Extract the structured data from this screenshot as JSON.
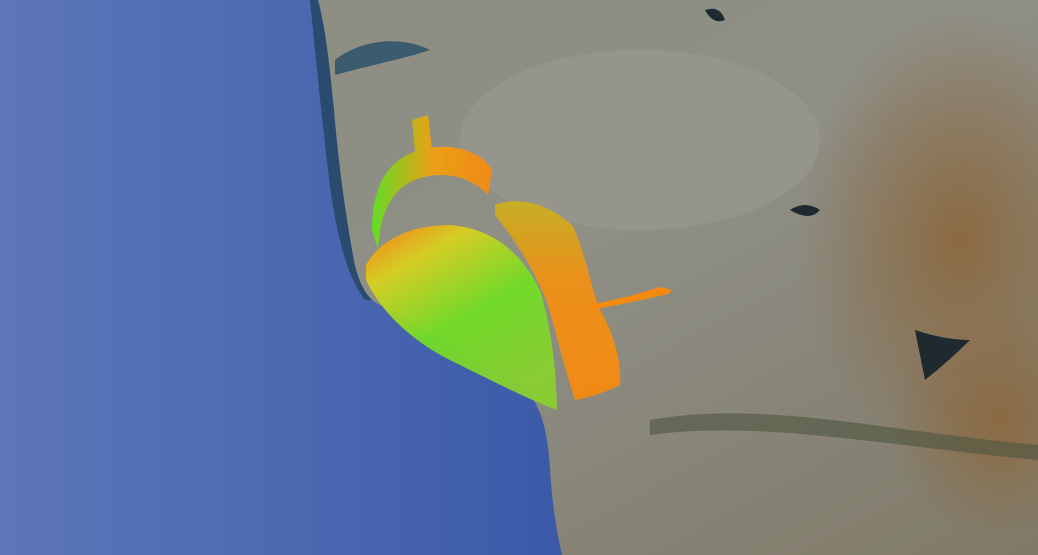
{
  "map": {
    "basemap": "satellite",
    "colors": {
      "ocean": "#3f5fa8",
      "ocean_shallow": "#2f4f7a",
      "land": "#8a8a78",
      "urban": "#9a9a92",
      "mountains": "#8a6a45",
      "overlay_low": "#33dd22",
      "overlay_high": "#ff8800"
    }
  }
}
